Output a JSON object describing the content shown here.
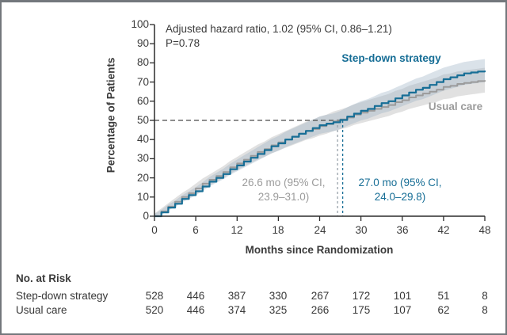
{
  "figure": {
    "annotation_line1": "Adjusted hazard ratio, 1.02 (95% CI, 0.86–1.21)",
    "annotation_line2": "P=0.78",
    "series_labels": {
      "step_down": "Step-down strategy",
      "usual_care": "Usual care"
    },
    "medians": {
      "usual_care": {
        "line1": "26.6 mo (95% CI,",
        "line2": "23.9–31.0)"
      },
      "step_down": {
        "line1": "27.0 mo (95% CI,",
        "line2": "24.0–29.8)"
      }
    },
    "x_axis_label": "Months since Randomization",
    "y_axis_label": "Percentage of Patients",
    "risk_table": {
      "heading": "No. at Risk",
      "rows": [
        {
          "label": "Step-down strategy",
          "values": [
            528,
            446,
            387,
            330,
            267,
            172,
            101,
            51,
            8
          ]
        },
        {
          "label": "Usual care",
          "values": [
            520,
            446,
            374,
            325,
            266,
            175,
            107,
            62,
            8
          ]
        }
      ]
    }
  },
  "colors": {
    "step_down_line": "#176e96",
    "usual_care_line": "#9b9b9b",
    "step_down_band": "#9db4c6",
    "usual_care_band": "#b0b0b0",
    "axis": "#2b2b2b",
    "dashed_reference": "#4a4a4a",
    "dashed_vertical_gray": "#98a2aa",
    "dashed_vertical_blue": "#176e96"
  },
  "chart_data": {
    "type": "line",
    "subtype": "kaplan-meier-cumulative-incidence-step-curves-with-confidence-bands",
    "title": "",
    "xlabel": "Months since Randomization",
    "ylabel": "Percentage of Patients",
    "xlim": [
      0,
      48
    ],
    "ylim": [
      0,
      100
    ],
    "x_ticks": [
      0,
      6,
      12,
      18,
      24,
      30,
      36,
      42,
      48
    ],
    "y_ticks": [
      0,
      10,
      20,
      30,
      40,
      50,
      60,
      70,
      80,
      90,
      100
    ],
    "grid": false,
    "annotation": "Adjusted hazard ratio, 1.02 (95% CI, 0.86–1.21); P=0.78",
    "median_event_time_months": {
      "step_down": 27.0,
      "step_down_ci": [
        24.0,
        29.8
      ],
      "usual_care": 26.6,
      "usual_care_ci": [
        23.9,
        31.0
      ]
    },
    "reference_lines": {
      "horizontal_percent": 50,
      "vertical_months": [
        26.6,
        27.0
      ]
    },
    "x_start_month": 0,
    "x_interval_months": 1,
    "series": [
      {
        "name": "Step-down strategy",
        "color": "#176e96",
        "y": [
          0,
          2,
          4.5,
          6.5,
          9,
          11,
          13,
          15.5,
          18,
          20,
          22,
          24.5,
          26.5,
          28.5,
          30.5,
          32.5,
          34.5,
          36.5,
          38,
          40,
          41.5,
          43,
          44.5,
          46,
          47.5,
          48.3,
          49,
          50.2,
          52,
          53.5,
          55,
          56,
          57.5,
          59,
          60,
          61.5,
          63,
          64.5,
          66,
          67,
          68.5,
          70,
          71.5,
          72.5,
          73.5,
          74.5,
          75,
          75.5,
          76
        ]
      },
      {
        "name": "Usual care",
        "color": "#9b9b9b",
        "y": [
          0,
          2.5,
          5,
          7.5,
          10,
          12,
          14.5,
          17,
          19,
          21,
          23,
          25.5,
          27.5,
          29.5,
          31.5,
          33.5,
          35,
          37,
          38.5,
          40,
          41.5,
          43,
          44.5,
          45.5,
          47,
          48,
          49.5,
          50.5,
          51.5,
          53,
          54,
          55,
          56,
          57,
          58,
          59.5,
          60.5,
          62,
          63,
          64,
          65,
          66,
          67.5,
          68,
          69,
          69.5,
          70,
          70.5,
          71
        ]
      }
    ],
    "at_risk_table": {
      "months": [
        0,
        6,
        12,
        18,
        24,
        30,
        36,
        42,
        48
      ],
      "step_down": [
        528,
        446,
        387,
        330,
        267,
        172,
        101,
        51,
        8
      ],
      "usual_care": [
        520,
        446,
        374,
        325,
        266,
        175,
        107,
        62,
        8
      ]
    }
  }
}
